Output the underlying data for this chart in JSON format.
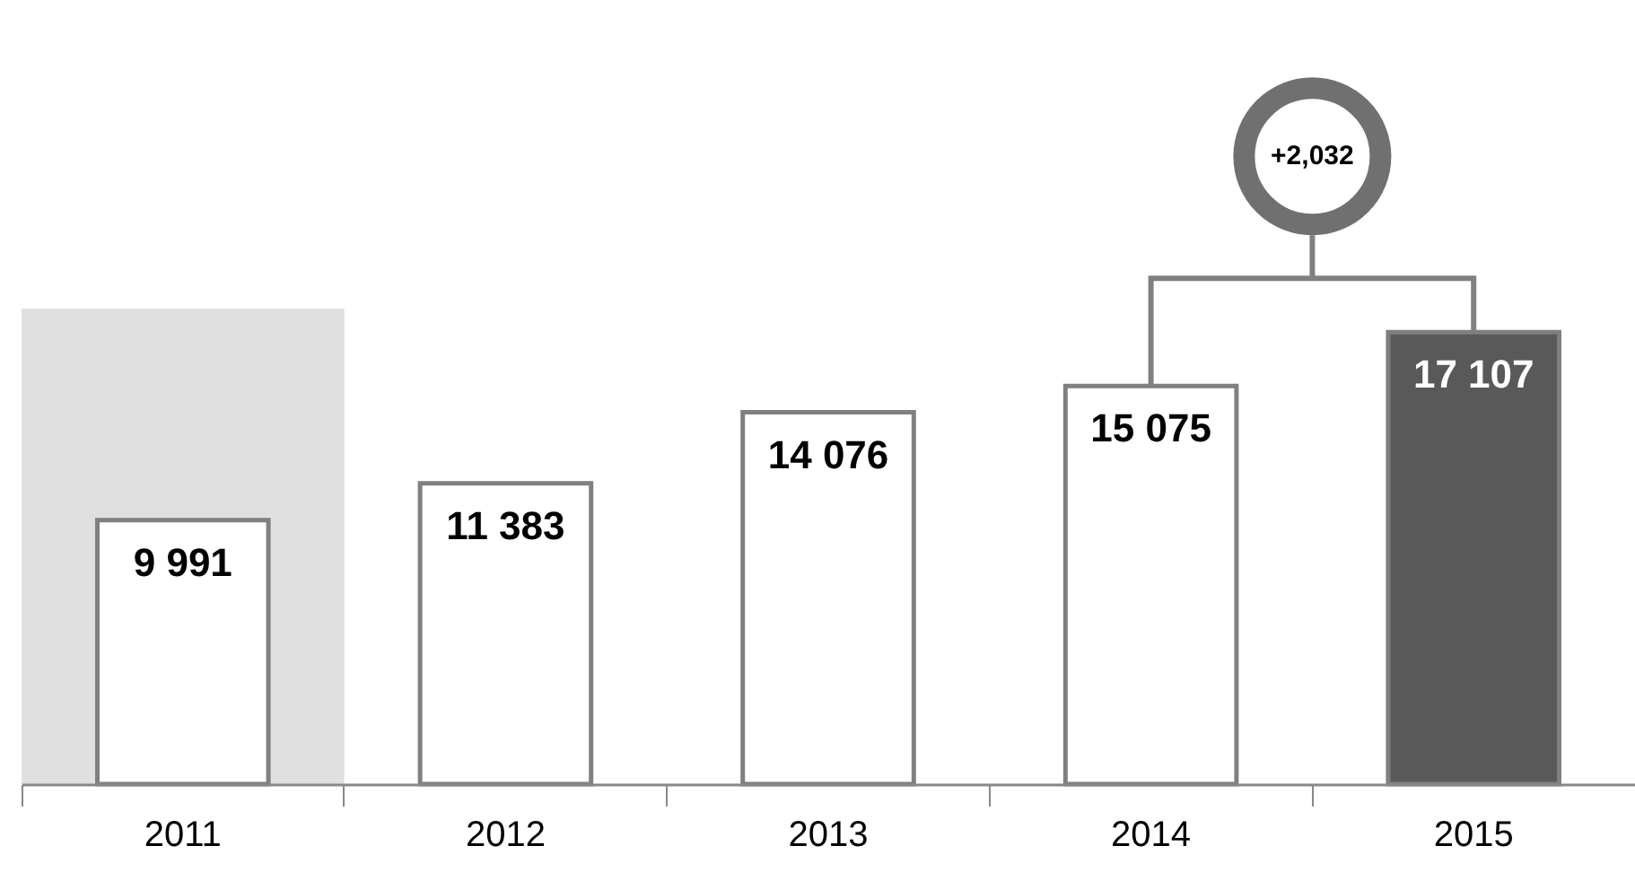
{
  "chart_data": {
    "type": "bar",
    "categories": [
      "2011",
      "2012",
      "2013",
      "2014",
      "2015"
    ],
    "values": [
      9991,
      11383,
      14076,
      15075,
      17107
    ],
    "colors": [
      "#ffffff",
      "#ffffff",
      "#ffffff",
      "#ffffff",
      "#595959"
    ],
    "value_labels": [
      "9 991",
      "11 383",
      "14 076",
      "15 075",
      "17 107"
    ],
    "annotations": [
      "+2,032"
    ],
    "bands": [
      {
        "axis": "x",
        "from": "2011",
        "to": "2011",
        "color": "#e0e0e0"
      }
    ],
    "tick_labels": "x"
  }
}
